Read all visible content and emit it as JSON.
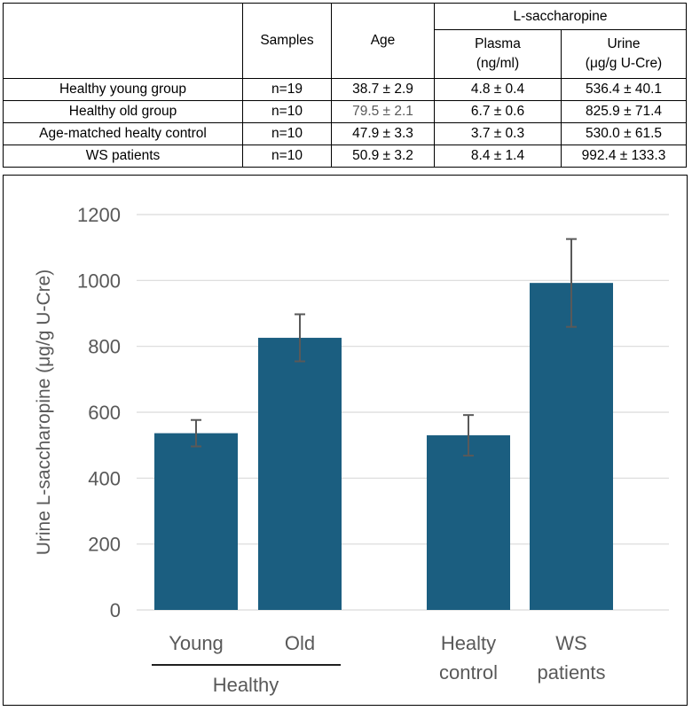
{
  "table": {
    "headers": {
      "samples": "Samples",
      "age": "Age",
      "group": "L-saccharopine",
      "plasma_line1": "Plasma",
      "plasma_line2": "(ng/ml)",
      "urine_line1": "Urine",
      "urine_line2": "(μg/g U-Cre)"
    },
    "rows": [
      {
        "group": "Healthy young group",
        "samples": "n=19",
        "age": "38.7 ± 2.9",
        "plasma": "4.8 ± 0.4",
        "urine": "536.4 ± 40.1"
      },
      {
        "group": "Healthy old group",
        "samples": "n=10",
        "age": "79.5 ± 2.1",
        "plasma": "6.7 ± 0.6",
        "urine": "825.9 ± 71.4"
      },
      {
        "group": "Age-matched healty control",
        "samples": "n=10",
        "age": "47.9 ± 3.3",
        "plasma": "3.7 ± 0.3",
        "urine": "530.0 ± 61.5"
      },
      {
        "group": "WS patients",
        "samples": "n=10",
        "age": "50.9 ± 3.2",
        "plasma": "8.4 ± 1.4",
        "urine": "992.4 ± 133.3"
      }
    ]
  },
  "chart_data": {
    "type": "bar",
    "ylabel": "Urine L-saccharopine (μg/g U-Cre)",
    "ylim": [
      0,
      1200
    ],
    "yticks": [
      "0",
      "200",
      "400",
      "600",
      "800",
      "1000",
      "1200"
    ],
    "grid": true,
    "bar_color": "#1B5E80",
    "categories": [
      {
        "line1": "Young",
        "line2": "",
        "value": 536.4,
        "error": 40.1
      },
      {
        "line1": "Old",
        "line2": "",
        "value": 825.9,
        "error": 71.4
      },
      {
        "line1": "Healty",
        "line2": "control",
        "value": 530.0,
        "error": 61.5
      },
      {
        "line1": "WS",
        "line2": "patients",
        "value": 992.4,
        "error": 133.3
      }
    ],
    "group_label": "Healthy"
  }
}
